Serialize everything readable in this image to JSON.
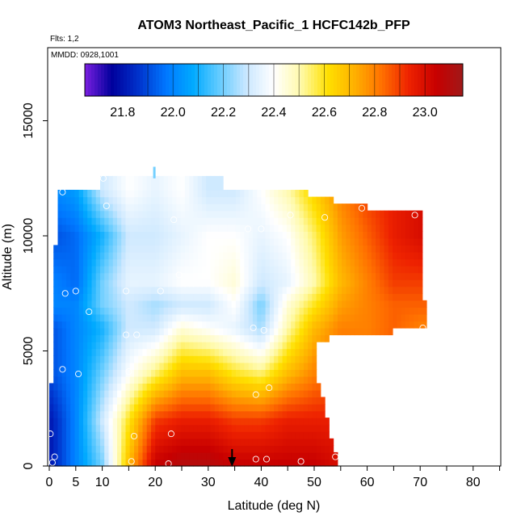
{
  "chart_data": {
    "type": "heatmap",
    "title": "ATOM3 Northeast_Pacific_1 HCFC142b_PFP",
    "subtitle_flights": "Flts: 1,2",
    "subtitle_dates": "MMDD: 0928,1001",
    "xlabel": "Latitude (deg N)",
    "ylabel": "Altitude (m)",
    "xlim": [
      0,
      85
    ],
    "ylim": [
      0,
      17500
    ],
    "x_ticks": [
      0,
      5,
      10,
      20,
      30,
      40,
      50,
      60,
      70,
      80
    ],
    "x_tick_labels": [
      "0",
      "5",
      "10",
      "20",
      "30",
      "40",
      "50",
      "60",
      "70",
      "80"
    ],
    "y_ticks": [
      0,
      5000,
      10000,
      15000
    ],
    "y_tick_labels": [
      "0",
      "5000",
      "10000",
      "15000"
    ],
    "colorbar": {
      "min": 21.65,
      "max": 23.15,
      "ticks": [
        21.8,
        22.0,
        22.2,
        22.4,
        22.6,
        22.8,
        23.0
      ],
      "tick_labels": [
        "21.8",
        "22.0",
        "22.2",
        "22.4",
        "22.6",
        "22.8",
        "23.0"
      ],
      "colors": [
        "#7a1fe0",
        "#00009c",
        "#0033cc",
        "#0077ff",
        "#00aaff",
        "#66ccff",
        "#cce8ff",
        "#ffffff",
        "#fffaaa",
        "#ffe000",
        "#ffb000",
        "#ff7000",
        "#ee2200",
        "#c80000",
        "#a01818"
      ]
    },
    "marker": {
      "latitude": 34.5
    },
    "field_profile": [
      {
        "lat": 0,
        "v": [
          21.8,
          21.8,
          21.9,
          21.9,
          22.0,
          22.0,
          21.9,
          22.0
        ]
      },
      {
        "lat": 5,
        "v": [
          22.0,
          22.0,
          22.0,
          22.0,
          22.0,
          21.95,
          21.95,
          22.05
        ]
      },
      {
        "lat": 10,
        "v": [
          22.2,
          22.3,
          22.2,
          22.1,
          22.2,
          22.2,
          22.1,
          22.3
        ]
      },
      {
        "lat": 15,
        "v": [
          22.7,
          22.6,
          22.4,
          22.3,
          22.3,
          22.35,
          22.3,
          22.4
        ]
      },
      {
        "lat": 20,
        "v": [
          23.05,
          22.9,
          22.55,
          22.3,
          22.25,
          22.35,
          22.3,
          22.35
        ]
      },
      {
        "lat": 25,
        "v": [
          23.1,
          22.95,
          22.7,
          22.45,
          22.3,
          22.4,
          22.35,
          22.4
        ]
      },
      {
        "lat": 30,
        "v": [
          23.1,
          22.95,
          22.7,
          22.4,
          22.3,
          22.4,
          22.4,
          22.3
        ]
      },
      {
        "lat": 35,
        "v": [
          23.05,
          22.9,
          22.6,
          22.35,
          22.4,
          22.45,
          22.4,
          22.3
        ]
      },
      {
        "lat": 40,
        "v": [
          23.05,
          22.9,
          22.55,
          22.25,
          22.2,
          22.3,
          22.35,
          22.4
        ]
      },
      {
        "lat": 45,
        "v": [
          23.05,
          22.95,
          22.7,
          22.5,
          22.45,
          22.35,
          22.4,
          22.5
        ]
      },
      {
        "lat": 50,
        "v": [
          23.05,
          22.95,
          22.8,
          22.7,
          22.6,
          22.5,
          22.55,
          22.65
        ]
      },
      {
        "lat": 55,
        "v": [
          23.0,
          22.95,
          22.85,
          22.8,
          22.75,
          22.7,
          22.75,
          22.8
        ]
      },
      {
        "lat": 60,
        "v": [
          22.95,
          22.9,
          22.85,
          22.8,
          22.8,
          22.8,
          22.85,
          22.9
        ]
      },
      {
        "lat": 65,
        "v": [
          22.9,
          22.85,
          22.85,
          22.85,
          22.85,
          22.9,
          22.95,
          22.95
        ]
      },
      {
        "lat": 70,
        "v": [
          22.85,
          22.8,
          22.8,
          22.8,
          22.85,
          22.9,
          23.0,
          23.0
        ]
      }
    ],
    "field_levels": [
      0,
      2000,
      4000,
      6000,
      7000,
      8000,
      10000,
      12000
    ],
    "sample_points": [
      {
        "lat": 0.2,
        "alt": 1400
      },
      {
        "lat": 0.6,
        "alt": 150
      },
      {
        "lat": 1.0,
        "alt": 400
      },
      {
        "lat": 2.5,
        "alt": 4200
      },
      {
        "lat": 2.5,
        "alt": 11900
      },
      {
        "lat": 3.0,
        "alt": 7500
      },
      {
        "lat": 5.0,
        "alt": 7600
      },
      {
        "lat": 5.5,
        "alt": 4000
      },
      {
        "lat": 7.5,
        "alt": 6700
      },
      {
        "lat": 10.2,
        "alt": 12500
      },
      {
        "lat": 10.8,
        "alt": 11300
      },
      {
        "lat": 14.5,
        "alt": 7600
      },
      {
        "lat": 14.5,
        "alt": 5700
      },
      {
        "lat": 15.0,
        "alt": 4100
      },
      {
        "lat": 15.5,
        "alt": 200
      },
      {
        "lat": 16.0,
        "alt": 1300
      },
      {
        "lat": 16.5,
        "alt": 5700
      },
      {
        "lat": 21.0,
        "alt": 7600
      },
      {
        "lat": 22.5,
        "alt": 100
      },
      {
        "lat": 23.0,
        "alt": 1400
      },
      {
        "lat": 23.5,
        "alt": 10700
      },
      {
        "lat": 24.5,
        "alt": 8300
      },
      {
        "lat": 25.0,
        "alt": 12700
      },
      {
        "lat": 37.5,
        "alt": 10300
      },
      {
        "lat": 38.5,
        "alt": 6000
      },
      {
        "lat": 39.0,
        "alt": 3100
      },
      {
        "lat": 39.0,
        "alt": 300
      },
      {
        "lat": 40.0,
        "alt": 10300
      },
      {
        "lat": 40.5,
        "alt": 5900
      },
      {
        "lat": 41.0,
        "alt": 300
      },
      {
        "lat": 41.5,
        "alt": 3400
      },
      {
        "lat": 45.5,
        "alt": 10900
      },
      {
        "lat": 47.5,
        "alt": 200
      },
      {
        "lat": 52.0,
        "alt": 10800
      },
      {
        "lat": 53.0,
        "alt": 2900
      },
      {
        "lat": 54.0,
        "alt": 400
      },
      {
        "lat": 59.0,
        "alt": 11200
      },
      {
        "lat": 69.0,
        "alt": 10900
      },
      {
        "lat": 70.5,
        "alt": 6000
      }
    ]
  }
}
